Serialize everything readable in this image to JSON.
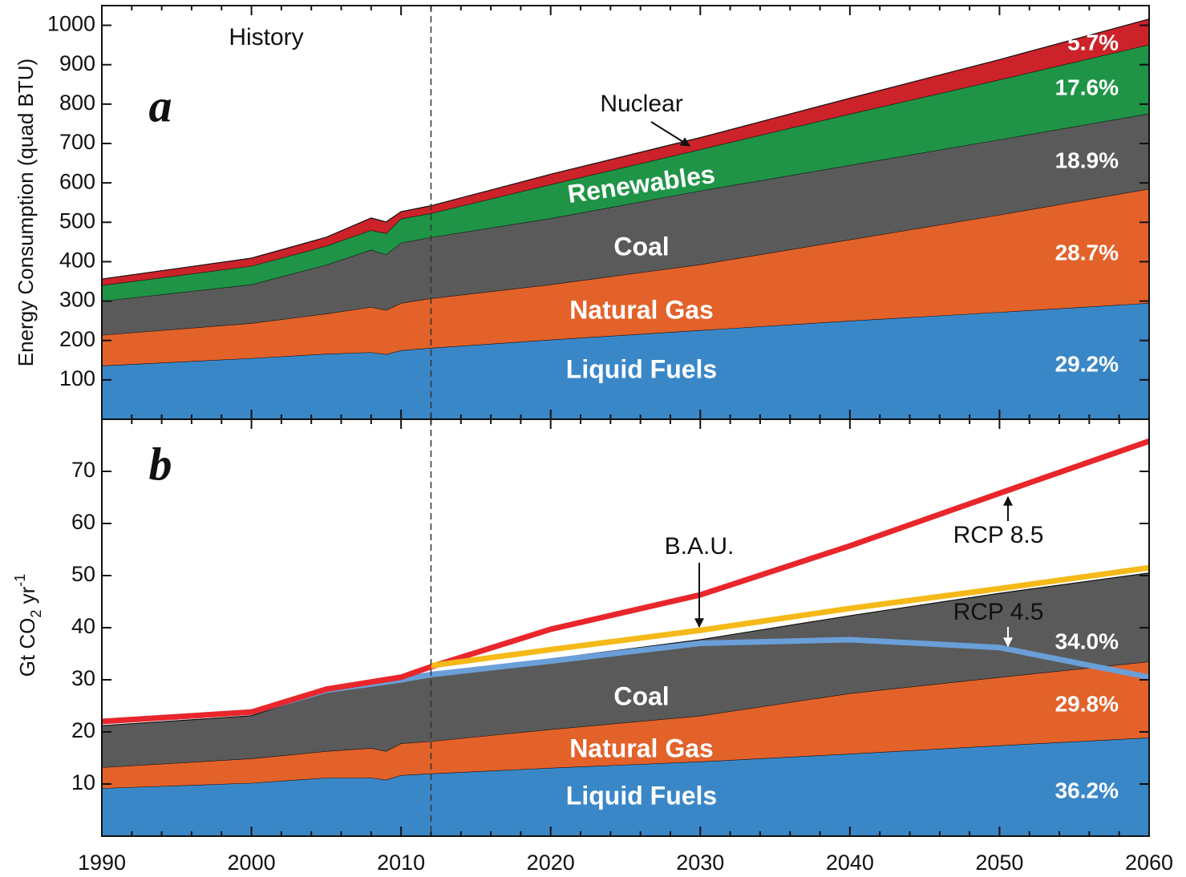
{
  "chart_data": [
    {
      "type": "stacked_area",
      "panel_label": "a",
      "note": "History",
      "y_label": "Energy Consumption (quad BTU)",
      "x": [
        1990,
        2000,
        2005,
        2008,
        2009,
        2010,
        2012,
        2020,
        2030,
        2040,
        2050,
        2060
      ],
      "series": [
        {
          "name": "Liquid Fuels",
          "color": "#3a87c8",
          "values": [
            136,
            155,
            166,
            170,
            165,
            175,
            181,
            202,
            226,
            250,
            272,
            295
          ],
          "share_label": "29.2%"
        },
        {
          "name": "Natural Gas",
          "color": "#e2622a",
          "values": [
            78,
            89,
            102,
            115,
            112,
            120,
            126,
            140,
            167,
            206,
            247,
            290
          ],
          "share_label": "28.7%"
        },
        {
          "name": "Coal",
          "color": "#5a5a5a",
          "values": [
            86,
            98,
            124,
            145,
            141,
            153,
            155,
            168,
            187,
            189,
            191,
            191
          ],
          "share_label": "18.9%"
        },
        {
          "name": "Renewables",
          "color": "#1f9447",
          "values": [
            40,
            47,
            48,
            50,
            54,
            61,
            61,
            86,
            105,
            130,
            152,
            175
          ],
          "share_label": "17.6%"
        },
        {
          "name": "Nuclear",
          "color": "#cc2229",
          "values": [
            16,
            20,
            22,
            31,
            29,
            18,
            19,
            26,
            30,
            40,
            51,
            65
          ],
          "share_label": "5.7%"
        }
      ],
      "xlim": [
        1990,
        2060
      ],
      "ylim": [
        0,
        1050
      ],
      "yticks": [
        100,
        200,
        300,
        400,
        500,
        600,
        700,
        800,
        900,
        1000
      ],
      "divider_x": 2012
    },
    {
      "type": "stacked_area",
      "panel_label": "b",
      "y_label": {
        "text": "Gt CO",
        "sub": "2",
        "mid": " yr",
        "sup": "-1"
      },
      "x": [
        1990,
        2000,
        2005,
        2008,
        2009,
        2010,
        2012,
        2020,
        2030,
        2040,
        2050,
        2060
      ],
      "series": [
        {
          "name": "Liquid Fuels",
          "color": "#3a87c8",
          "values": [
            9.2,
            10.2,
            11.2,
            11.2,
            10.8,
            11.7,
            12,
            13.1,
            14.3,
            15.8,
            17.4,
            18.9
          ],
          "share_label": "36.2%"
        },
        {
          "name": "Natural Gas",
          "color": "#e2622a",
          "values": [
            4,
            4.7,
            5.1,
            5.7,
            5.5,
            6.1,
            6.2,
            7.4,
            8.8,
            11.6,
            13.1,
            14.6
          ],
          "share_label": "29.8%"
        },
        {
          "name": "Coal",
          "color": "#5a5a5a",
          "values": [
            8,
            8.2,
            11.5,
            12.3,
            13.4,
            12.2,
            13,
            13.5,
            14.6,
            14.9,
            16.1,
            17
          ],
          "share_label": "34.0%"
        }
      ],
      "lines": [
        {
          "name": "RCP 4.5",
          "color": "#6a9fd8",
          "x": [
            1990,
            2000,
            2005,
            2010,
            2012,
            2020,
            2030,
            2040,
            2050,
            2060
          ],
          "values": [
            22,
            23.8,
            28,
            30,
            31,
            33.6,
            37,
            37.7,
            36.2,
            30.5
          ]
        },
        {
          "name": "RCP 8.5",
          "color": "#e8262b",
          "x": [
            1990,
            2000,
            2005,
            2010,
            2012,
            2020,
            2030,
            2040,
            2050,
            2060
          ],
          "values": [
            22,
            23.8,
            28.2,
            30.5,
            32.5,
            39.7,
            46.3,
            55.7,
            65.8,
            75.8
          ]
        },
        {
          "name": "B.A.U.",
          "color": "#f5b918",
          "x": [
            2012,
            2020,
            2030,
            2040,
            2050,
            2060
          ],
          "values": [
            32.7,
            35.8,
            39.5,
            43.7,
            47.5,
            51.5
          ]
        }
      ],
      "xlim": [
        1990,
        2060
      ],
      "ylim": [
        0,
        80
      ],
      "yticks": [
        10,
        20,
        30,
        40,
        50,
        60,
        70
      ],
      "xticks": [
        1990,
        2000,
        2010,
        2020,
        2030,
        2040,
        2050,
        2060
      ],
      "xminorticks": [
        1992,
        1994,
        1996,
        1998,
        2002,
        2004,
        2006,
        2008,
        2012,
        2014,
        2016,
        2018,
        2022,
        2024,
        2026,
        2028,
        2032,
        2034,
        2036,
        2038,
        2042,
        2044,
        2046,
        2048,
        2052,
        2054,
        2056,
        2058
      ],
      "divider_x": 2012
    }
  ]
}
